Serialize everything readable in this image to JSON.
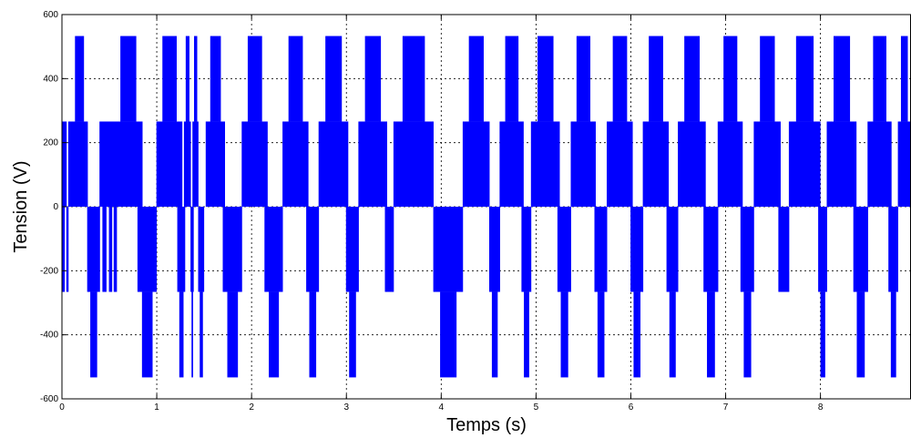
{
  "chart_data": {
    "type": "line",
    "title": "",
    "xlabel": "Temps (s)",
    "ylabel": "Tension (V)",
    "xlim": [
      0,
      8.95
    ],
    "ylim": [
      -600,
      600
    ],
    "xticks": [
      0,
      1,
      2,
      3,
      4,
      5,
      6,
      7,
      8
    ],
    "yticks": [
      -600,
      -400,
      -200,
      0,
      200,
      400,
      600
    ],
    "grid": true,
    "grid_style": "dotted",
    "legend": "none",
    "series_color": "#0000ff",
    "series": [
      {
        "levels": [
          266,
          533,
          -266,
          -533
        ],
        "positive_segments": [
          {
            "t0": 0.0,
            "t1": 0.05,
            "peak": 266
          },
          {
            "t0": 0.07,
            "t1": 0.1,
            "peak": 266
          },
          {
            "t0": 0.1,
            "t1": 0.27,
            "peak": 533
          },
          {
            "t0": 0.4,
            "t1": 0.55,
            "peak": 266
          },
          {
            "t0": 0.55,
            "t1": 0.85,
            "peak": 533
          },
          {
            "t0": 1.0,
            "t1": 1.27,
            "peak": 533
          },
          {
            "t0": 1.29,
            "t1": 1.36,
            "peak": 533
          },
          {
            "t0": 1.38,
            "t1": 1.44,
            "peak": 533
          },
          {
            "t0": 1.52,
            "t1": 1.72,
            "peak": 533
          },
          {
            "t0": 1.9,
            "t1": 2.17,
            "peak": 533
          },
          {
            "t0": 2.33,
            "t1": 2.6,
            "peak": 533
          },
          {
            "t0": 2.71,
            "t1": 3.02,
            "peak": 533
          },
          {
            "t0": 3.13,
            "t1": 3.43,
            "peak": 533
          },
          {
            "t0": 3.5,
            "t1": 3.92,
            "peak": 533
          },
          {
            "t0": 4.23,
            "t1": 4.51,
            "peak": 533
          },
          {
            "t0": 4.62,
            "t1": 4.87,
            "peak": 533
          },
          {
            "t0": 4.95,
            "t1": 5.25,
            "peak": 533
          },
          {
            "t0": 5.37,
            "t1": 5.63,
            "peak": 533
          },
          {
            "t0": 5.75,
            "t1": 6.02,
            "peak": 533
          },
          {
            "t0": 6.13,
            "t1": 6.4,
            "peak": 533
          },
          {
            "t0": 6.5,
            "t1": 6.79,
            "peak": 533
          },
          {
            "t0": 6.92,
            "t1": 7.18,
            "peak": 533
          },
          {
            "t0": 7.3,
            "t1": 7.58,
            "peak": 533
          },
          {
            "t0": 7.67,
            "t1": 8.0,
            "peak": 533
          },
          {
            "t0": 8.07,
            "t1": 8.38,
            "peak": 533
          },
          {
            "t0": 8.5,
            "t1": 8.75,
            "peak": 533
          },
          {
            "t0": 8.82,
            "t1": 8.95,
            "peak": 533
          }
        ],
        "negative_segments": [
          {
            "t0": 0.0,
            "t1": 0.03,
            "peak": -266
          },
          {
            "t0": 0.05,
            "t1": 0.07,
            "peak": -266
          },
          {
            "t0": 0.27,
            "t1": 0.4,
            "peak": -533
          },
          {
            "t0": 0.43,
            "t1": 0.47,
            "peak": -266
          },
          {
            "t0": 0.5,
            "t1": 0.53,
            "peak": -266
          },
          {
            "t0": 0.55,
            "t1": 0.58,
            "peak": -266
          },
          {
            "t0": 0.8,
            "t1": 1.0,
            "peak": -533
          },
          {
            "t0": 1.22,
            "t1": 1.3,
            "peak": -533
          },
          {
            "t0": 1.36,
            "t1": 1.39,
            "peak": -533
          },
          {
            "t0": 1.44,
            "t1": 1.5,
            "peak": -533
          },
          {
            "t0": 1.7,
            "t1": 1.9,
            "peak": -533
          },
          {
            "t0": 2.14,
            "t1": 2.33,
            "peak": -533
          },
          {
            "t0": 2.58,
            "t1": 2.71,
            "peak": -533
          },
          {
            "t0": 3.0,
            "t1": 3.13,
            "peak": -533
          },
          {
            "t0": 3.41,
            "t1": 3.5,
            "peak": -266
          },
          {
            "t0": 3.92,
            "t1": 4.23,
            "peak": -533
          },
          {
            "t0": 4.51,
            "t1": 4.62,
            "peak": -533
          },
          {
            "t0": 4.85,
            "t1": 4.95,
            "peak": -533
          },
          {
            "t0": 5.23,
            "t1": 5.37,
            "peak": -533
          },
          {
            "t0": 5.62,
            "t1": 5.75,
            "peak": -533
          },
          {
            "t0": 6.0,
            "t1": 6.13,
            "peak": -533
          },
          {
            "t0": 6.38,
            "t1": 6.5,
            "peak": -533
          },
          {
            "t0": 6.77,
            "t1": 6.92,
            "peak": -533
          },
          {
            "t0": 7.16,
            "t1": 7.3,
            "peak": -533
          },
          {
            "t0": 7.56,
            "t1": 7.67,
            "peak": -266
          },
          {
            "t0": 7.98,
            "t1": 8.07,
            "peak": -533
          },
          {
            "t0": 8.35,
            "t1": 8.5,
            "peak": -533
          },
          {
            "t0": 8.72,
            "t1": 8.82,
            "peak": -533
          }
        ]
      }
    ]
  }
}
